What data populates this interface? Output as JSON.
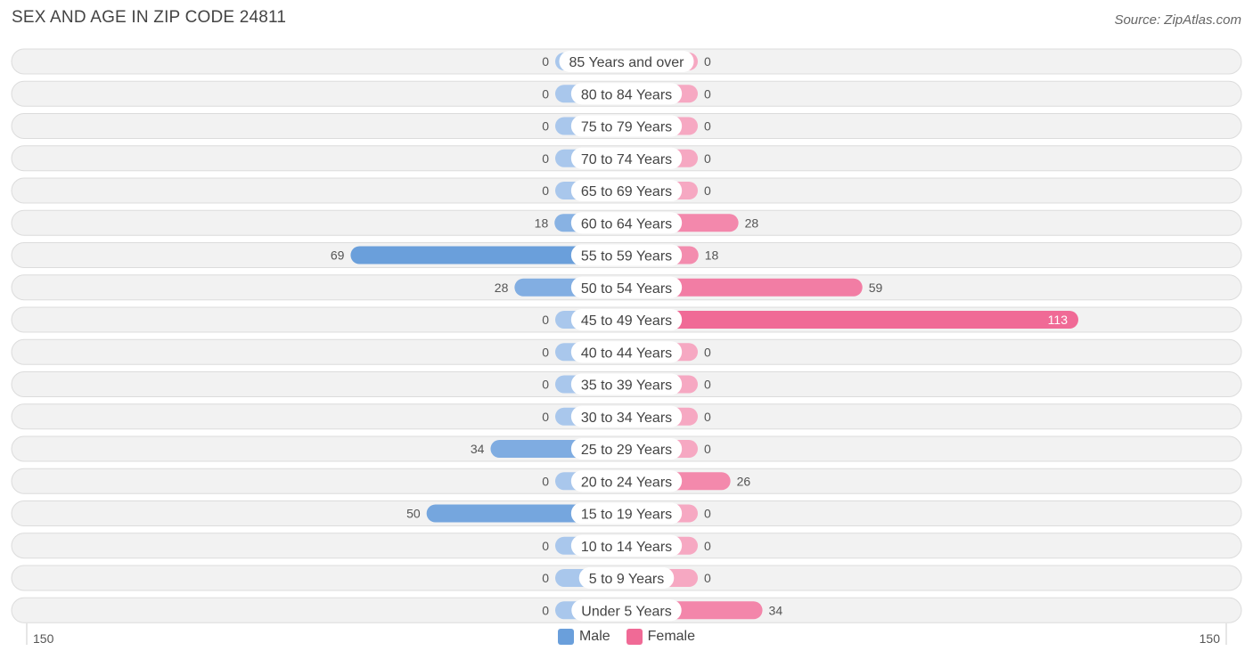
{
  "title": "SEX AND AGE IN ZIP CODE 24811",
  "source": "Source: ZipAtlas.com",
  "colors": {
    "male_strong": "#6a9fdb",
    "male_light": "#a9c7ec",
    "female_strong": "#f06a96",
    "female_light": "#f6a8c2"
  },
  "chart_data": {
    "type": "bar",
    "orientation": "horizontal-diverging",
    "categories": [
      "85 Years and over",
      "80 to 84 Years",
      "75 to 79 Years",
      "70 to 74 Years",
      "65 to 69 Years",
      "60 to 64 Years",
      "55 to 59 Years",
      "50 to 54 Years",
      "45 to 49 Years",
      "40 to 44 Years",
      "35 to 39 Years",
      "30 to 34 Years",
      "25 to 29 Years",
      "20 to 24 Years",
      "15 to 19 Years",
      "10 to 14 Years",
      "5 to 9 Years",
      "Under 5 Years"
    ],
    "series": [
      {
        "name": "Male",
        "values": [
          0,
          0,
          0,
          0,
          0,
          18,
          69,
          28,
          0,
          0,
          0,
          0,
          34,
          0,
          50,
          0,
          0,
          0
        ]
      },
      {
        "name": "Female",
        "values": [
          0,
          0,
          0,
          0,
          0,
          28,
          18,
          59,
          113,
          0,
          0,
          0,
          0,
          26,
          0,
          0,
          0,
          34
        ]
      }
    ],
    "xlim": [
      -150,
      150
    ],
    "axis_left_label": "150",
    "axis_right_label": "150",
    "legend_position": "bottom-center",
    "grid": false
  }
}
